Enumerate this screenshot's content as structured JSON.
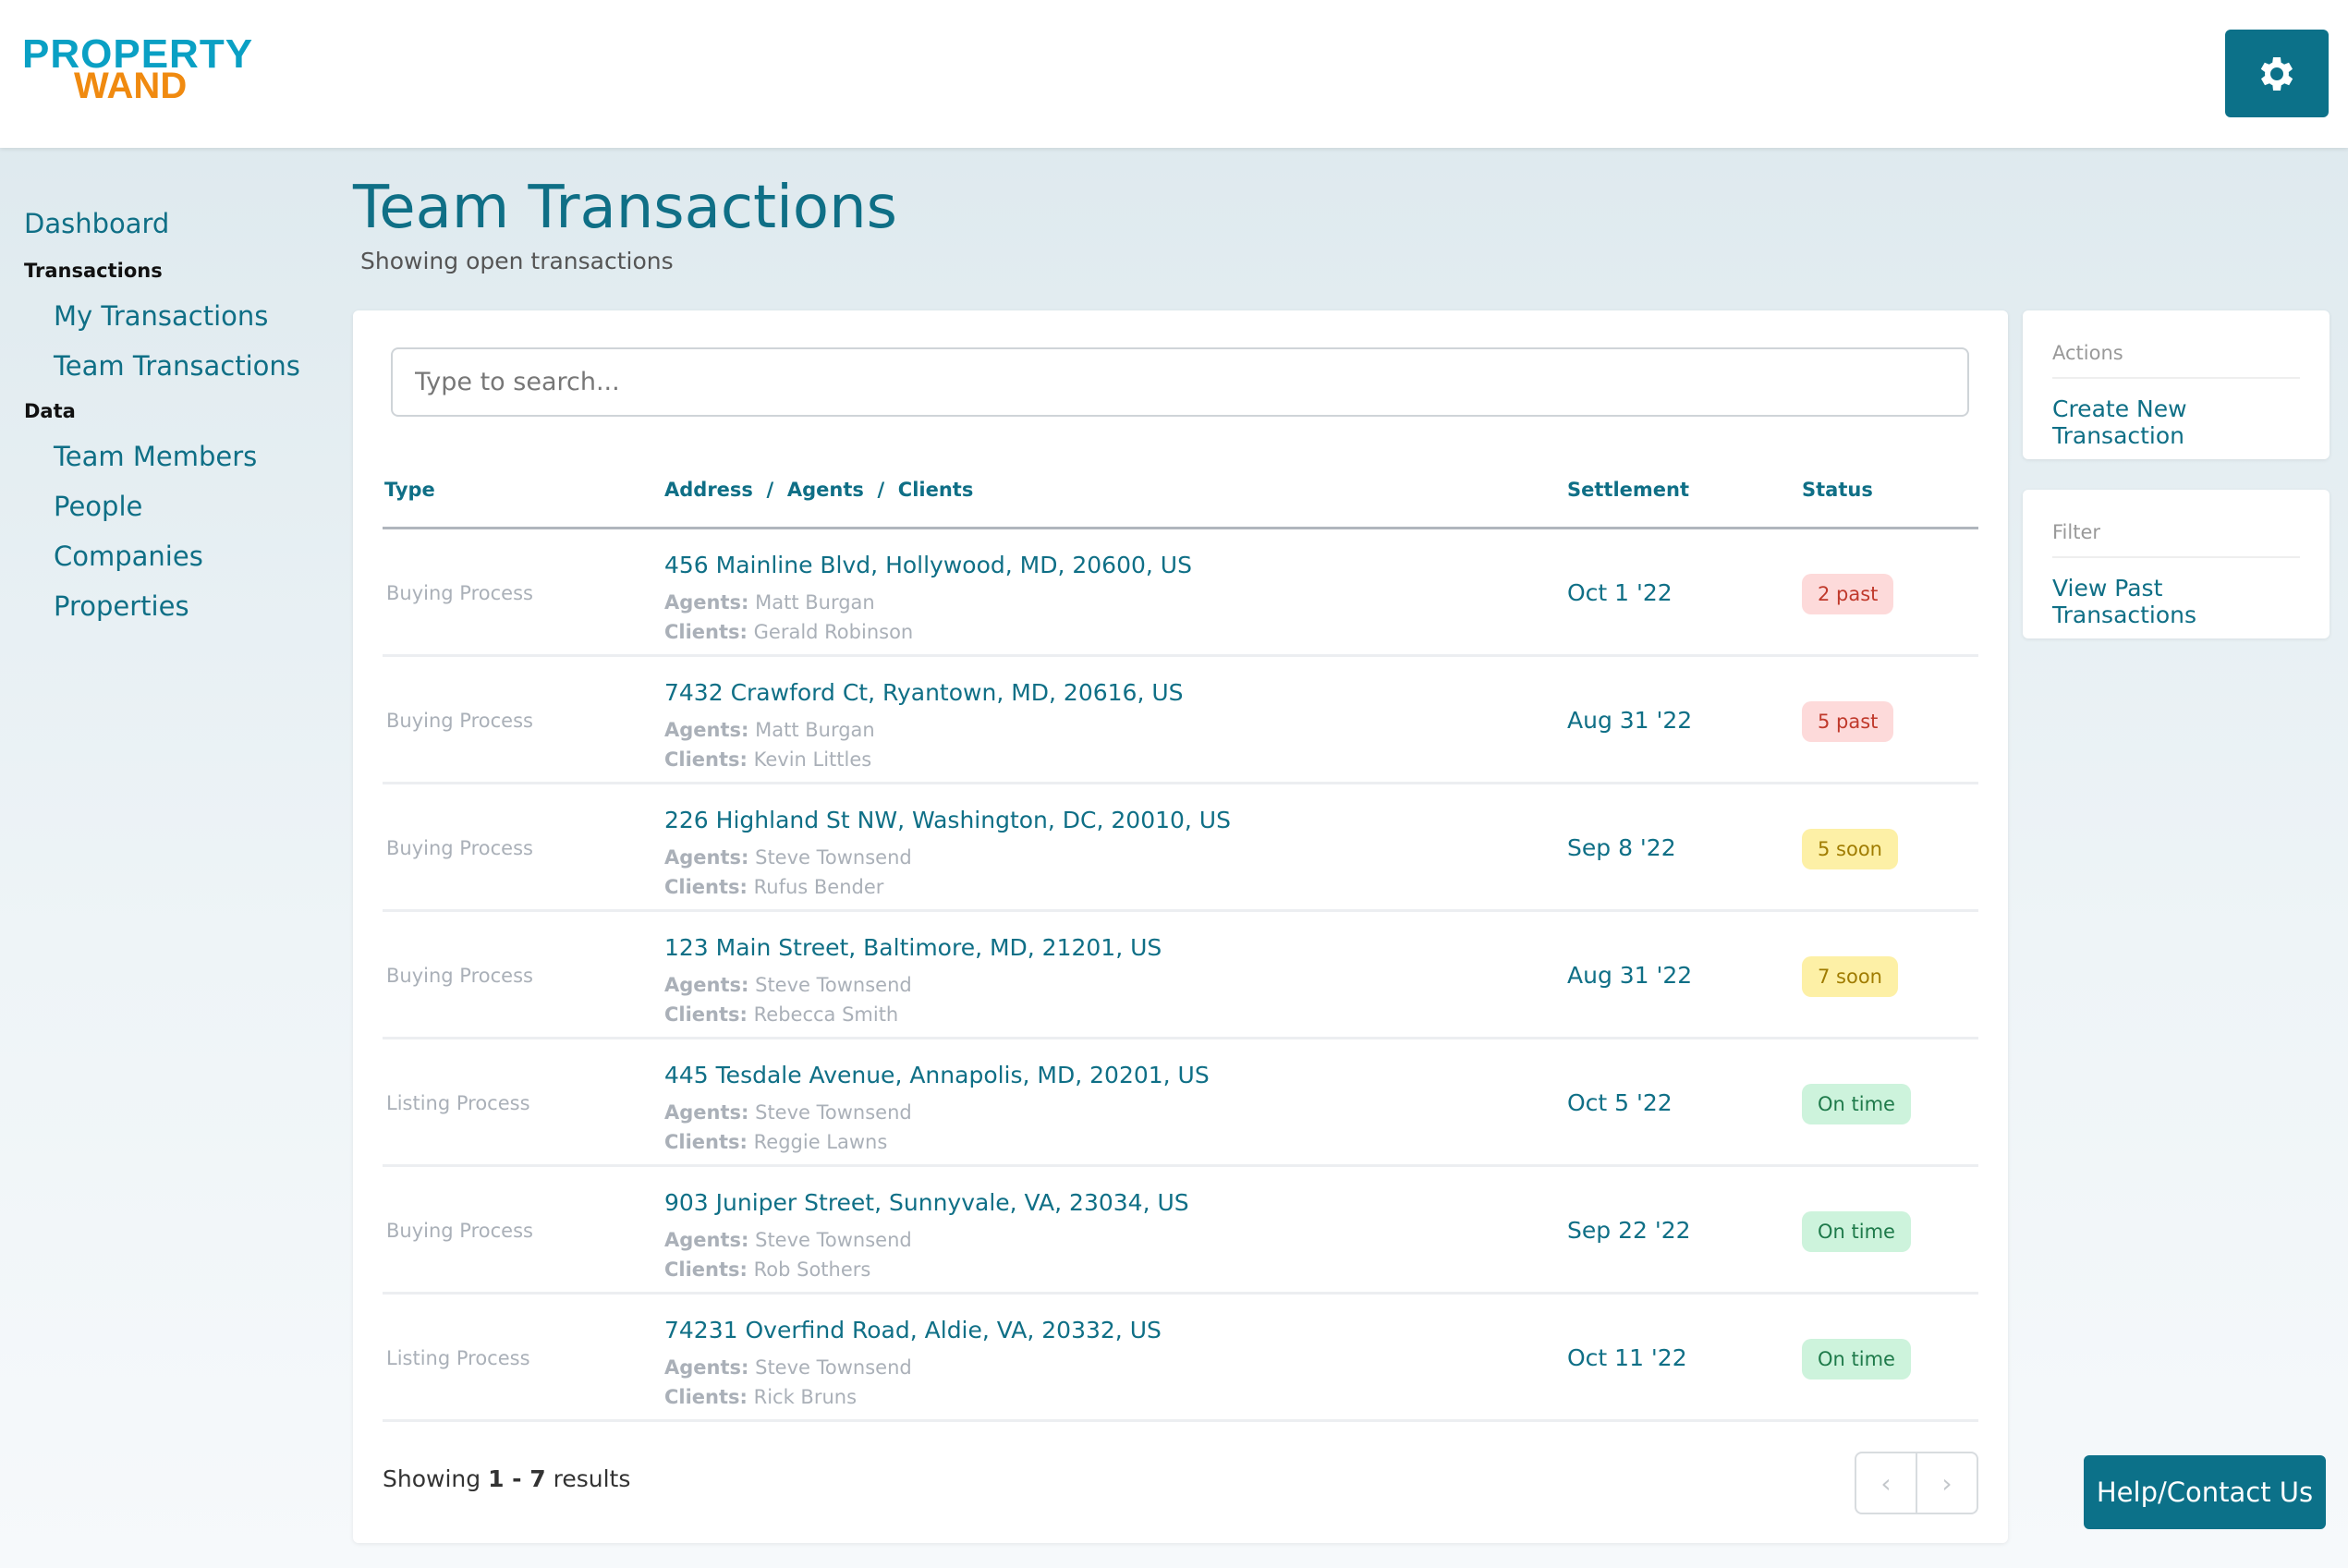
{
  "logo": {
    "line1": "PROPERTY",
    "line2": "WAND"
  },
  "sidebar": {
    "dashboard": "Dashboard",
    "sections": [
      {
        "title": "Transactions",
        "items": [
          "My Transactions",
          "Team Transactions"
        ]
      },
      {
        "title": "Data",
        "items": [
          "Team Members",
          "People",
          "Companies",
          "Properties"
        ]
      }
    ]
  },
  "page": {
    "title": "Team Transactions",
    "subtitle": "Showing open transactions"
  },
  "search": {
    "placeholder": "Type to search..."
  },
  "table": {
    "headers": {
      "type": "Type",
      "address": "Address",
      "agents": "Agents",
      "clients": "Clients",
      "sep": "/",
      "settlement": "Settlement",
      "status": "Status"
    },
    "agents_label": "Agents:",
    "clients_label": "Clients:",
    "rows": [
      {
        "type": "Buying Process",
        "address": "456 Mainline Blvd, Hollywood, MD, 20600, US",
        "agents": "Matt Burgan",
        "clients": "Gerald Robinson",
        "settlement": "Oct 1 '22",
        "status": "2 past",
        "kind": "past"
      },
      {
        "type": "Buying Process",
        "address": "7432 Crawford Ct, Ryantown, MD, 20616, US",
        "agents": "Matt Burgan",
        "clients": "Kevin Littles",
        "settlement": "Aug 31 '22",
        "status": "5 past",
        "kind": "past"
      },
      {
        "type": "Buying Process",
        "address": "226 Highland St NW, Washington, DC, 20010, US",
        "agents": "Steve Townsend",
        "clients": "Rufus Bender",
        "settlement": "Sep 8 '22",
        "status": "5 soon",
        "kind": "soon"
      },
      {
        "type": "Buying Process",
        "address": "123 Main Street, Baltimore, MD, 21201, US",
        "agents": "Steve Townsend",
        "clients": "Rebecca Smith",
        "settlement": "Aug 31 '22",
        "status": "7 soon",
        "kind": "soon"
      },
      {
        "type": "Listing Process",
        "address": "445 Tesdale Avenue, Annapolis, MD, 20201, US",
        "agents": "Steve Townsend",
        "clients": "Reggie Lawns",
        "settlement": "Oct 5 '22",
        "status": "On time",
        "kind": "ontime"
      },
      {
        "type": "Buying Process",
        "address": "903 Juniper Street, Sunnyvale, VA, 23034, US",
        "agents": "Steve Townsend",
        "clients": "Rob Sothers",
        "settlement": "Sep 22 '22",
        "status": "On time",
        "kind": "ontime"
      },
      {
        "type": "Listing Process",
        "address": "74231 Overfind Road, Aldie, VA, 20332, US",
        "agents": "Steve Townsend",
        "clients": "Rick Bruns",
        "settlement": "Oct 11 '22",
        "status": "On time",
        "kind": "ontime"
      }
    ]
  },
  "footer": {
    "prefix": "Showing",
    "range": "1 - 7",
    "suffix": "results"
  },
  "actions": {
    "label": "Actions",
    "create": "Create New Transaction"
  },
  "filter": {
    "label": "Filter",
    "past": "View Past Transactions"
  },
  "help": "Help/Contact Us",
  "colors": {
    "past_bg": "#fddada",
    "past_fg": "#c0392b",
    "soon_bg": "#fdf0a6",
    "soon_fg": "#a07c00",
    "ontime_bg": "#cdf3dc",
    "ontime_fg": "#1e7a4a"
  }
}
